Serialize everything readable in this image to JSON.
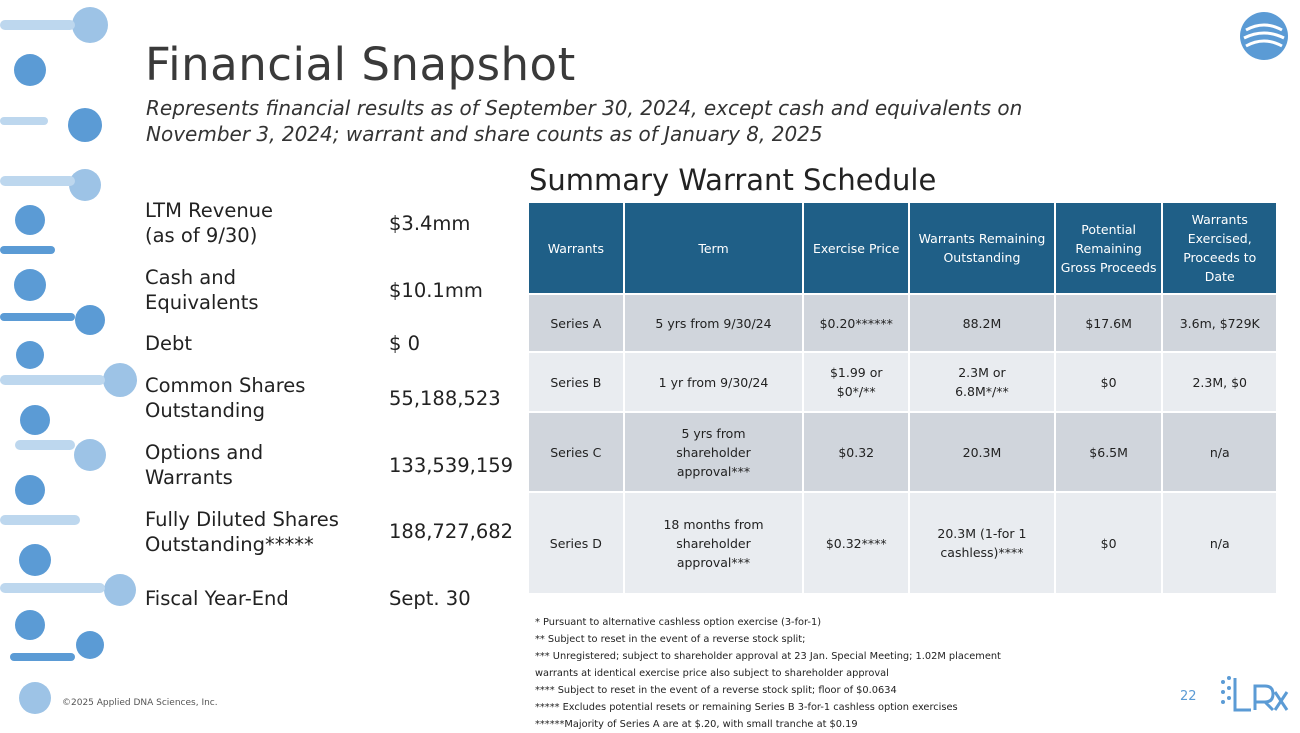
{
  "header": {
    "title": "Financial Snapshot",
    "subtitle_line1": "Represents financial results as of September 30, 2024, except cash and equivalents on",
    "subtitle_line2": "November 3, 2024;  warrant and share counts as of January 8, 2025"
  },
  "metrics": [
    {
      "label_line1": "LTM Revenue",
      "label_line2": "(as of 9/30)",
      "value": "$3.4mm"
    },
    {
      "label_line1": "Cash and",
      "label_line2": "Equivalents",
      "value": "$10.1mm"
    },
    {
      "label_line1": "Debt",
      "label_line2": "",
      "value": "$ 0"
    },
    {
      "label_line1": "Common Shares",
      "label_line2": "Outstanding",
      "value": "55,188,523"
    },
    {
      "label_line1": "Options and",
      "label_line2": "Warrants",
      "value": "133,539,159"
    },
    {
      "label_line1": "Fully Diluted Shares",
      "label_line2": "Outstanding*****",
      "value": "188,727,682"
    },
    {
      "label_line1": "Fiscal Year-End",
      "label_line2": "",
      "value": "Sept. 30"
    }
  ],
  "warrant_schedule": {
    "title": "Summary Warrant Schedule",
    "headers": [
      "Warrants",
      "Term",
      "Exercise Price",
      "Warrants Remaining Outstanding",
      "Potential Remaining Gross Proceeds",
      "Warrants Exercised, Proceeds to Date"
    ],
    "rows": [
      [
        "Series A",
        "5 yrs from 9/30/24",
        "$0.20******",
        "88.2M",
        "$17.6M",
        "3.6m, $729K"
      ],
      [
        "Series B",
        "1 yr from 9/30/24",
        "$1.99 or $0*/**",
        "2.3M or 6.8M*/**",
        "$0",
        "2.3M, $0"
      ],
      [
        "Series C",
        "5 yrs from shareholder approval***",
        "$0.32",
        "20.3M",
        "$6.5M",
        "n/a"
      ],
      [
        "Series D",
        "18 months from shareholder approval***",
        "$0.32****",
        "20.3M (1-for 1 cashless)****",
        "$0",
        "n/a"
      ]
    ]
  },
  "footnotes": [
    "* Pursuant to alternative cashless option exercise (3-for-1)",
    "** Subject to reset in the event of a reverse stock split;",
    "*** Unregistered; subject to shareholder approval at 23 Jan. Special Meeting; 1.02M placement",
    "warrants at identical exercise price also subject to shareholder approval",
    "**** Subject to reset in the event of a reverse stock split; floor of $0.0634",
    "***** Excludes potential resets or remaining Series B 3-for-1 cashless option exercises",
    "******Majority of Series A are at $.20, with small tranche at $0.19"
  ],
  "footer": {
    "copyright": "©2025 Applied DNA Sciences, Inc.",
    "page_number": "22"
  },
  "colors": {
    "header_blue": "#1f5f87",
    "row_dark": "#d0d5dc",
    "row_light": "#e9ecf0",
    "deco_blue": "#5b9bd5",
    "deco_light": "#bdd7ee"
  }
}
